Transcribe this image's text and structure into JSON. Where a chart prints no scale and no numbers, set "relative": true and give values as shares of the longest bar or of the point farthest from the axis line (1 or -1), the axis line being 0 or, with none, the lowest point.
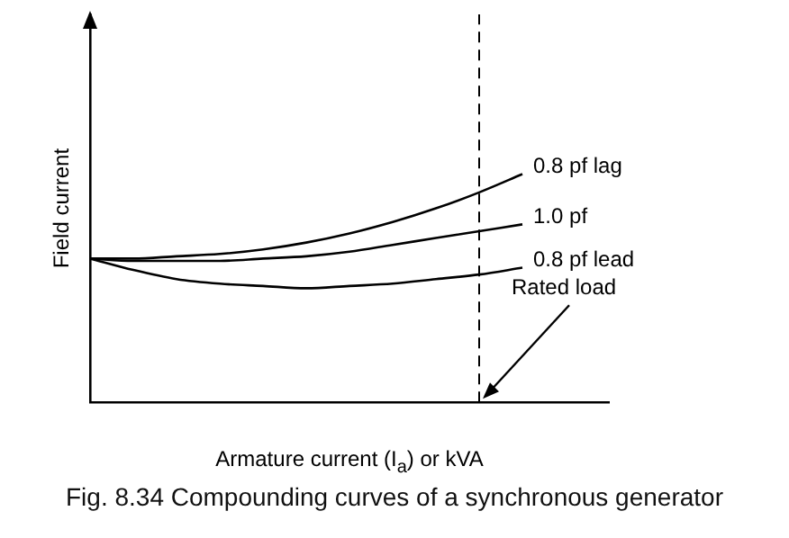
{
  "chart_data": {
    "type": "line",
    "relative": true,
    "xlabel": "Armature current (I$_{a}$) or kVA",
    "ylabel": "Field current",
    "categories": [
      null,
      null,
      null,
      null,
      null,
      null,
      null,
      null,
      null,
      null,
      null,
      null,
      null
    ],
    "series": [
      {
        "name": "0.8 pf lag",
        "color": "#000000",
        "values": [
          0.63,
          0.63,
          0.64,
          0.65,
          0.67,
          0.7,
          0.74,
          0.79,
          0.85,
          0.92,
          1.0,
          null,
          null
        ]
      },
      {
        "name": "1.0 pf",
        "color": "#000000",
        "values": [
          0.63,
          0.62,
          0.62,
          0.62,
          0.63,
          0.64,
          0.66,
          0.69,
          0.72,
          0.75,
          0.78,
          null,
          null
        ]
      },
      {
        "name": "0.8 pf lead",
        "color": "#000000",
        "values": [
          0.63,
          0.58,
          0.54,
          0.52,
          0.51,
          0.5,
          0.51,
          0.52,
          0.54,
          0.56,
          0.59,
          null,
          null
        ]
      }
    ],
    "annotations": [
      "Rated load",
      "Fig. 8.34 Compounding curves of a synchronous generator"
    ],
    "grid": false,
    "legend": false,
    "marker": "none",
    "line_style": "solid"
  }
}
